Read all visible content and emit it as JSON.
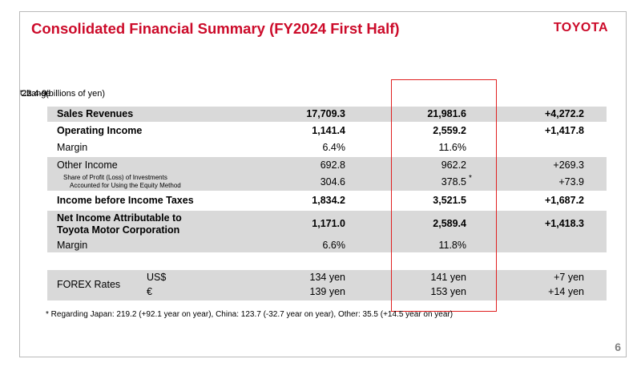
{
  "header": {
    "title": "Consolidated Financial Summary (FY2024 First Half)",
    "brand": "TOYOTA",
    "page_number": "6"
  },
  "table": {
    "unit_label": "(billions of yen)",
    "columns": [
      "'22.4-9",
      "'23.4-9",
      "Change"
    ],
    "rows": {
      "sales": {
        "label": "Sales Revenues",
        "v1": "17,709.3",
        "v2": "21,981.6",
        "change": "+4,272.2"
      },
      "opinc": {
        "label": "Operating Income",
        "v1": "1,141.4",
        "v2": "2,559.2",
        "change": "+1,417.8"
      },
      "margin1": {
        "label": "Margin",
        "v1": "6.4%",
        "v2": "11.6%",
        "change": ""
      },
      "other": {
        "label": "Other Income",
        "v1": "692.8",
        "v2": "962.2",
        "change": "+269.3"
      },
      "share": {
        "label_line1": "Share of Profit (Loss) of Investments",
        "label_line2": "Accounted for Using the Equity Method",
        "v1": "304.6",
        "v2": "378.5",
        "mark": "*",
        "change": "+73.9"
      },
      "ibt": {
        "label": "Income before Income Taxes",
        "v1": "1,834.2",
        "v2": "3,521.5",
        "change": "+1,687.2"
      },
      "netinc": {
        "label_line1": "Net Income Attributable to",
        "label_line2": "Toyota Motor Corporation",
        "v1": "1,171.0",
        "v2": "2,589.4",
        "change": "+1,418.3"
      },
      "margin2": {
        "label": "Margin",
        "v1": "6.6%",
        "v2": "11.8%",
        "change": ""
      }
    },
    "forex": {
      "label": "FOREX Rates",
      "usd": {
        "currency": "US$",
        "v1": "134 yen",
        "v2": "141 yen",
        "change": "+7 yen"
      },
      "eur": {
        "currency": "€",
        "v1": "139 yen",
        "v2": "153 yen",
        "change": "+14 yen"
      }
    }
  },
  "footnote": "* Regarding Japan: 219.2 (+92.1 year on year), China: 123.7  (-32.7 year on year), Other: 35.5 (+14.5 year on year)"
}
